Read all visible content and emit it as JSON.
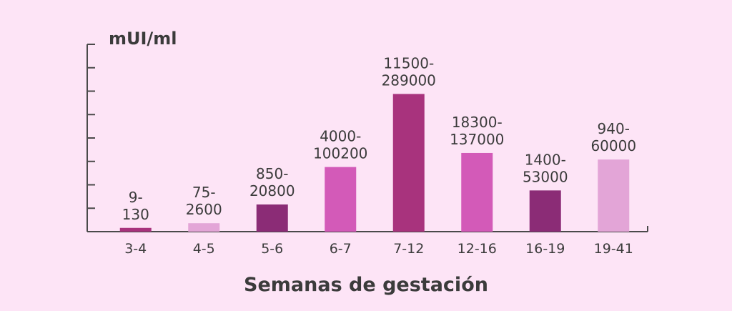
{
  "chart_data": {
    "type": "bar",
    "ylabel": "mUI/ml",
    "xlabel": "Semanas de gestación",
    "categories": [
      "3-4",
      "4-5",
      "5-6",
      "6-7",
      "7-12",
      "12-16",
      "16-19",
      "19-41"
    ],
    "value_labels": [
      [
        "9-",
        "130"
      ],
      [
        "75-",
        "2600"
      ],
      [
        "850-",
        "20800"
      ],
      [
        "4000-",
        "100200"
      ],
      [
        "11500-",
        "289000"
      ],
      [
        "18300-",
        "137000"
      ],
      [
        "1400-",
        "53000"
      ],
      [
        "940-",
        "60000"
      ]
    ],
    "relative_heights": [
      0.02,
      0.045,
      0.145,
      0.345,
      0.735,
      0.42,
      0.22,
      0.385
    ],
    "colors": [
      "#a8337d",
      "#e3a5d7",
      "#8b2c76",
      "#d35ab8",
      "#a8337d",
      "#d35ab8",
      "#8b2c76",
      "#e3a5d7"
    ],
    "y_tick_count": 8,
    "grid": false
  }
}
